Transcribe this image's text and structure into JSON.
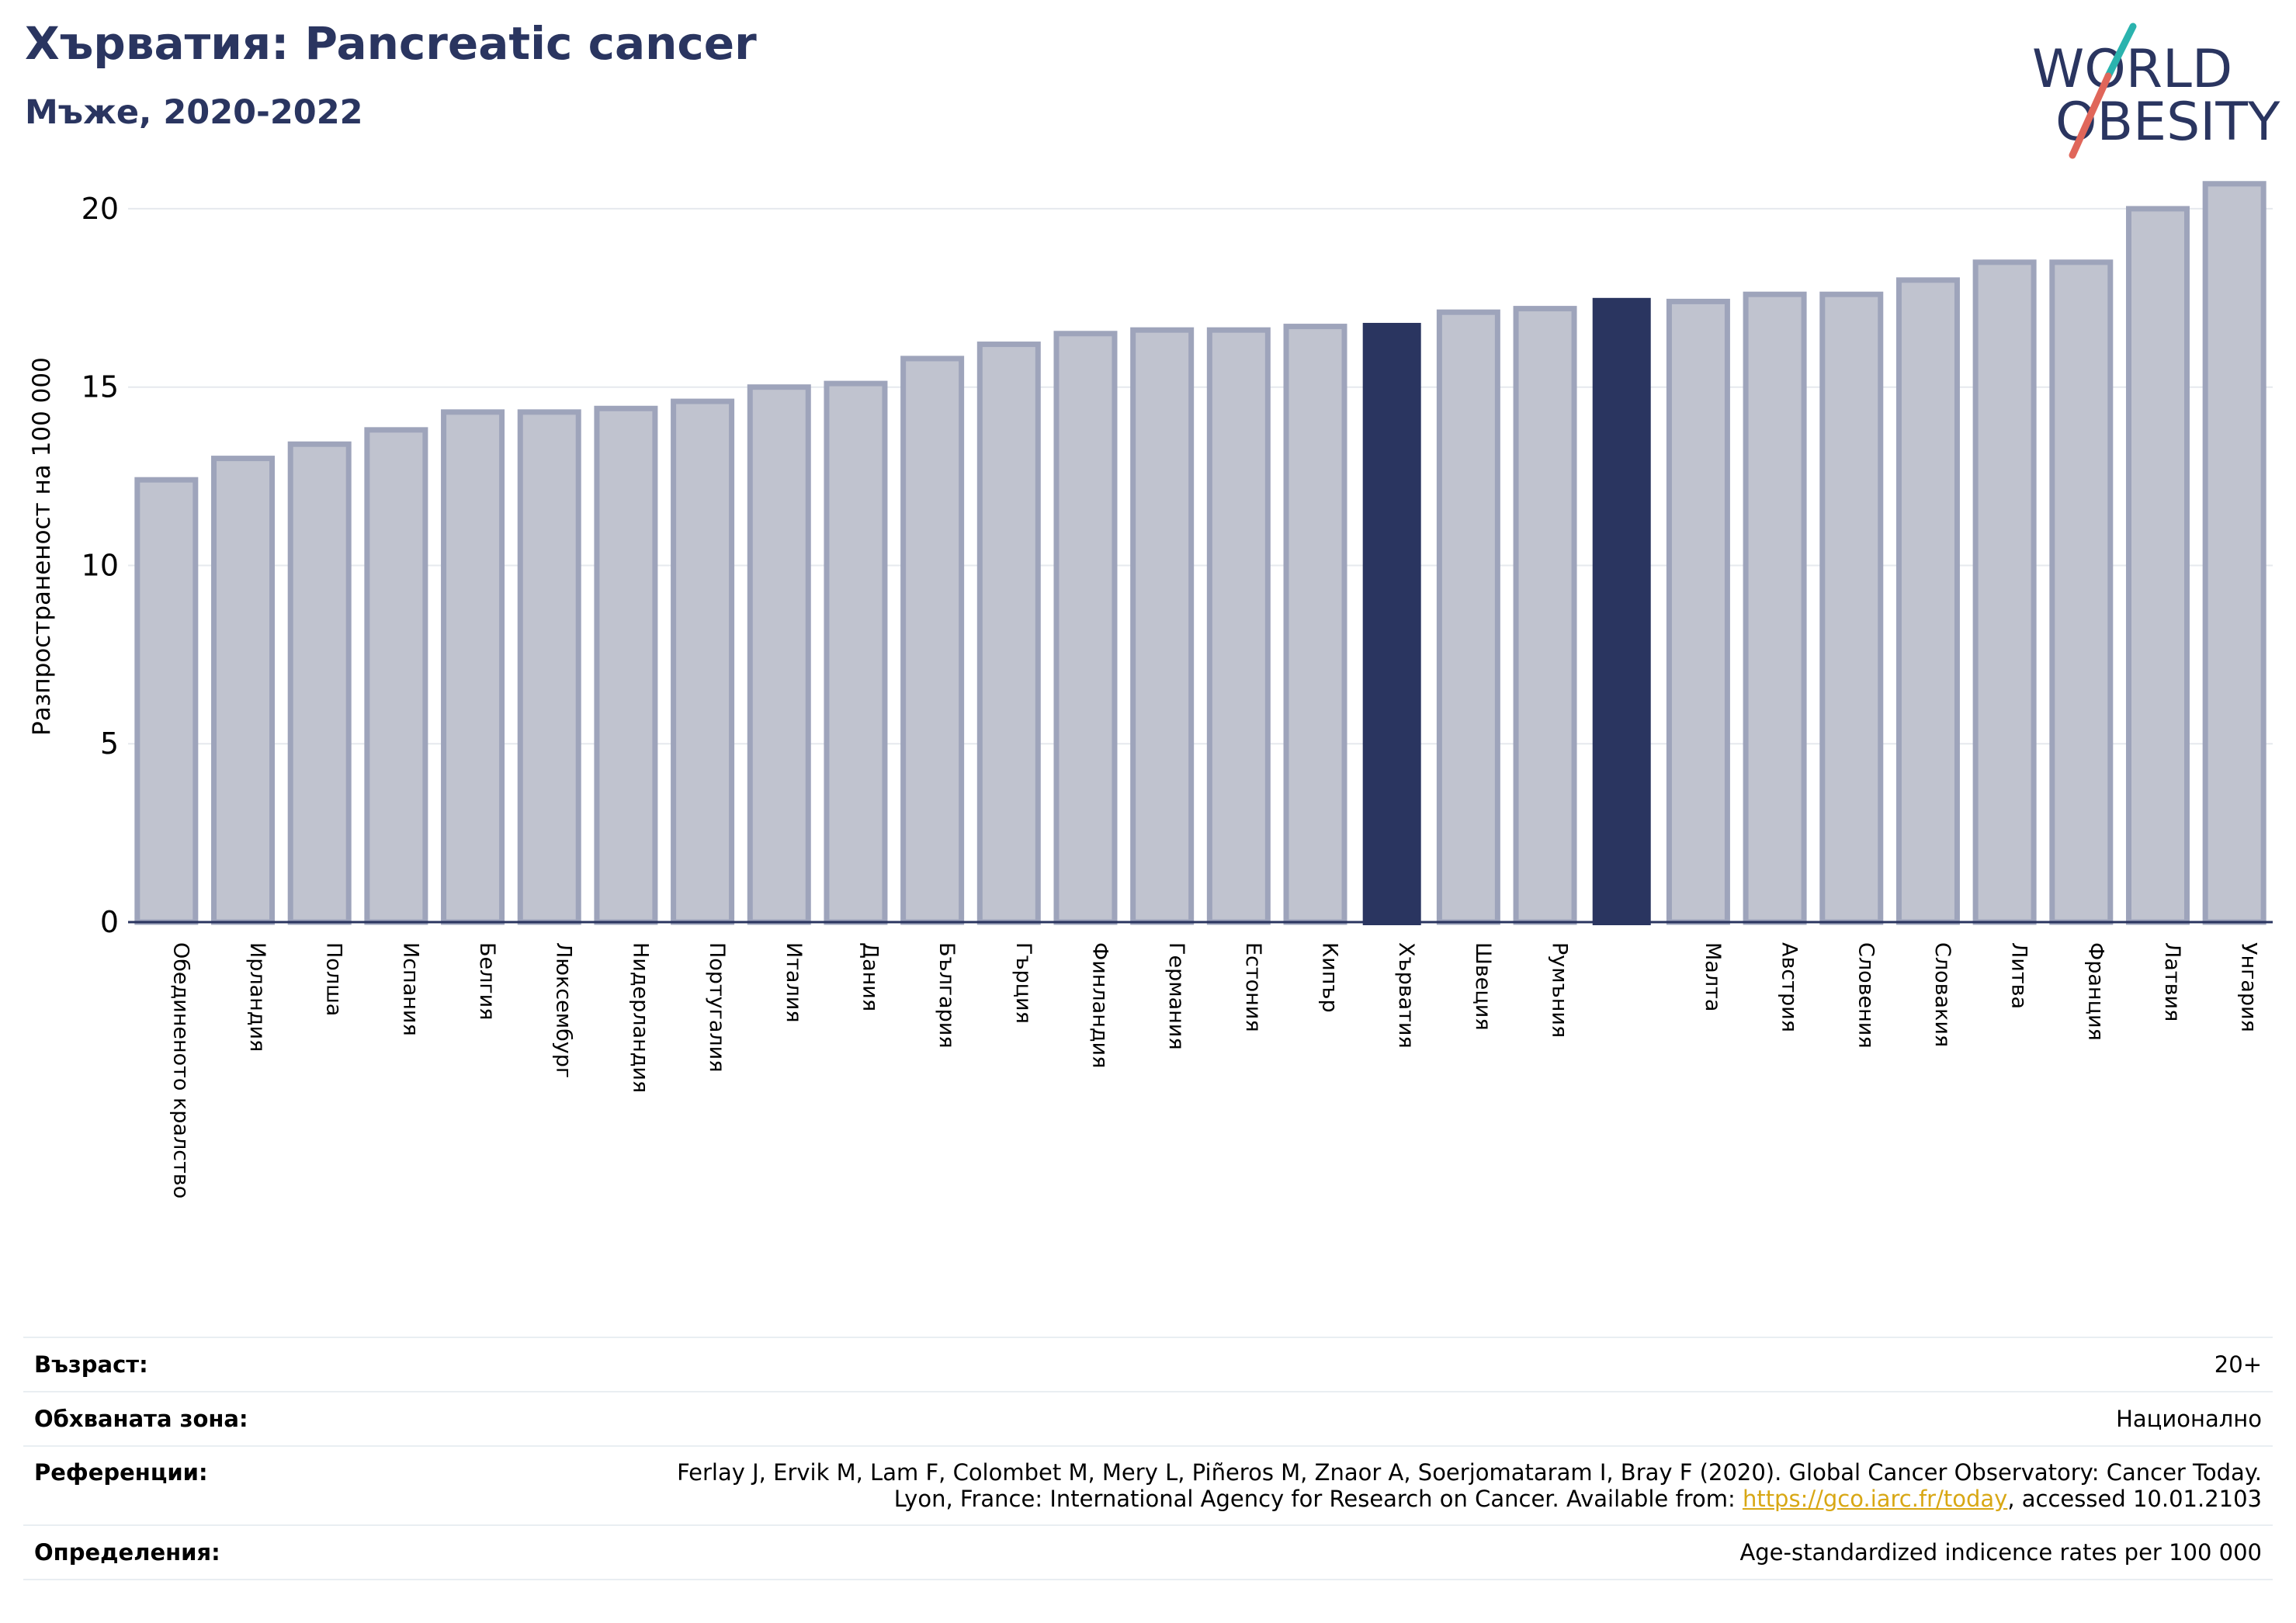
{
  "header": {
    "title": "Хърватия: Pancreatic cancer",
    "subtitle": "Мъже, 2020-2022"
  },
  "logo": {
    "line1": "WORLD",
    "line2": "OBESITY",
    "slash_color_top": "#2ab3ae",
    "slash_color_bottom": "#e0665a"
  },
  "colors": {
    "bar_default_fill": "#c0c3cf",
    "bar_default_stroke": "#9ea4bb",
    "bar_highlight": "#2a3560",
    "grid": "#e6e9ee",
    "axis": "#2a3560"
  },
  "chart_data": {
    "type": "bar",
    "title": "",
    "xlabel": "",
    "ylabel": "Разпространеност  на 100 000",
    "ylim": [
      0,
      21.5
    ],
    "yticks": [
      0,
      5,
      10,
      15,
      20
    ],
    "grid": true,
    "categories": [
      "Обединеното кралство",
      "Ирландия",
      "Полша",
      "Испания",
      "Белгия",
      "Люксембург",
      "Нидерландия",
      "Португалия",
      "Италия",
      "Дания",
      "България",
      "Гърция",
      "Финландия",
      "Германия",
      "Естония",
      "Кипър",
      "Хърватия",
      "Швеция",
      "Румъния",
      "",
      "Малта",
      "Австрия",
      "Словения",
      "Словакия",
      "Литва",
      "Франция",
      "Латвия",
      "Унгария"
    ],
    "values": [
      12.4,
      13.0,
      13.4,
      13.8,
      14.3,
      14.3,
      14.4,
      14.6,
      15.0,
      15.1,
      15.8,
      16.2,
      16.5,
      16.6,
      16.6,
      16.7,
      16.8,
      17.1,
      17.2,
      17.5,
      17.4,
      17.6,
      17.6,
      18.0,
      18.5,
      18.5,
      20.0,
      20.7
    ],
    "highlighted": [
      "Хърватия",
      ""
    ]
  },
  "info": {
    "age_label": "Възраст:",
    "age_value": "20+",
    "coverage_label": "Обхваната зона:",
    "coverage_value": "Национално",
    "references_label": "Референции:",
    "references_line1": "Ferlay J, Ervik M, Lam F, Colombet M, Mery L, Piñeros M, Znaor A, Soerjomataram I, Bray F (2020). Global Cancer Observatory: Cancer Today.",
    "references_line2_pre": "Lyon, France: International Agency for Research on Cancer. Available from: ",
    "references_link": "https://gco.iarc.fr/today",
    "references_line2_post": ", accessed 10.01.2103",
    "definitions_label": "Определения:",
    "definitions_value": "Age-standardized indicence rates per 100 000"
  }
}
